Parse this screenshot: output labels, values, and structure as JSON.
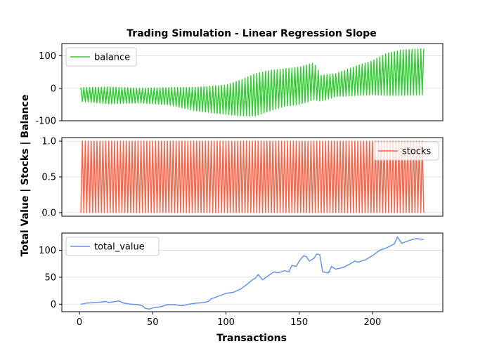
{
  "figure": {
    "title": "Trading Simulation - Linear Regression Slope",
    "ylabel": "Total Value | Stocks | Balance",
    "xlabel": "Transactions"
  },
  "chart_data": [
    {
      "type": "line",
      "name": "balance",
      "series": [
        {
          "name": "balance",
          "color": "#32cd32"
        }
      ],
      "legend": "upper left",
      "ylim": [
        -100,
        138
      ],
      "yticks": [
        -100,
        0,
        100
      ],
      "xlim": [
        -12,
        248
      ],
      "grid": "horizontal",
      "x_range": [
        1,
        235
      ],
      "oscillation": {
        "period_transactions": 2,
        "pattern": "alternating high/low"
      },
      "upper_envelope": [
        [
          1,
          2
        ],
        [
          20,
          4
        ],
        [
          40,
          0
        ],
        [
          60,
          2
        ],
        [
          80,
          3
        ],
        [
          100,
          10
        ],
        [
          110,
          25
        ],
        [
          120,
          45
        ],
        [
          130,
          55
        ],
        [
          140,
          60
        ],
        [
          150,
          65
        ],
        [
          160,
          78
        ],
        [
          165,
          40
        ],
        [
          175,
          45
        ],
        [
          190,
          70
        ],
        [
          200,
          85
        ],
        [
          210,
          108
        ],
        [
          220,
          118
        ],
        [
          235,
          122
        ]
      ],
      "lower_envelope": [
        [
          1,
          -40
        ],
        [
          20,
          -48
        ],
        [
          40,
          -45
        ],
        [
          60,
          -50
        ],
        [
          80,
          -70
        ],
        [
          100,
          -80
        ],
        [
          110,
          -85
        ],
        [
          120,
          -85
        ],
        [
          130,
          -70
        ],
        [
          140,
          -55
        ],
        [
          150,
          -50
        ],
        [
          160,
          -35
        ],
        [
          165,
          -40
        ],
        [
          175,
          -25
        ],
        [
          190,
          -22
        ],
        [
          200,
          -20
        ],
        [
          210,
          -22
        ],
        [
          220,
          -22
        ],
        [
          235,
          -20
        ]
      ]
    },
    {
      "type": "line",
      "name": "stocks",
      "series": [
        {
          "name": "stocks",
          "color": "#ff6347"
        }
      ],
      "legend": "upper right",
      "ylim": [
        -0.05,
        1.05
      ],
      "yticks": [
        0.0,
        0.5,
        1.0
      ],
      "ytick_labels": [
        "0.0",
        "0.5",
        "1.0"
      ],
      "xlim": [
        -12,
        248
      ],
      "grid": "horizontal",
      "x_range": [
        1,
        235
      ],
      "oscillation": {
        "period_transactions": 2,
        "values": [
          0,
          1
        ]
      }
    },
    {
      "type": "line",
      "name": "total_value",
      "series": [
        {
          "name": "total_value",
          "color": "#6495ed",
          "points": [
            [
              1,
              0
            ],
            [
              5,
              2
            ],
            [
              10,
              3
            ],
            [
              15,
              4
            ],
            [
              18,
              5
            ],
            [
              20,
              3
            ],
            [
              25,
              5
            ],
            [
              27,
              6
            ],
            [
              30,
              2
            ],
            [
              35,
              0
            ],
            [
              40,
              -1
            ],
            [
              43,
              -3
            ],
            [
              45,
              -8
            ],
            [
              48,
              -9
            ],
            [
              50,
              -7
            ],
            [
              55,
              -5
            ],
            [
              60,
              -1
            ],
            [
              65,
              -1
            ],
            [
              70,
              -3
            ],
            [
              75,
              0
            ],
            [
              80,
              2
            ],
            [
              85,
              3
            ],
            [
              88,
              5
            ],
            [
              90,
              10
            ],
            [
              95,
              15
            ],
            [
              100,
              20
            ],
            [
              105,
              22
            ],
            [
              110,
              28
            ],
            [
              115,
              38
            ],
            [
              118,
              45
            ],
            [
              120,
              48
            ],
            [
              122,
              55
            ],
            [
              125,
              45
            ],
            [
              130,
              55
            ],
            [
              133,
              60
            ],
            [
              135,
              58
            ],
            [
              140,
              62
            ],
            [
              143,
              60
            ],
            [
              145,
              72
            ],
            [
              148,
              70
            ],
            [
              150,
              80
            ],
            [
              153,
              90
            ],
            [
              155,
              88
            ],
            [
              157,
              80
            ],
            [
              160,
              85
            ],
            [
              162,
              93
            ],
            [
              164,
              92
            ],
            [
              166,
              60
            ],
            [
              170,
              58
            ],
            [
              172,
              70
            ],
            [
              175,
              65
            ],
            [
              180,
              68
            ],
            [
              185,
              75
            ],
            [
              188,
              80
            ],
            [
              190,
              78
            ],
            [
              195,
              82
            ],
            [
              200,
              90
            ],
            [
              205,
              100
            ],
            [
              210,
              105
            ],
            [
              215,
              112
            ],
            [
              217,
              125
            ],
            [
              220,
              113
            ],
            [
              225,
              118
            ],
            [
              230,
              122
            ],
            [
              235,
              120
            ]
          ]
        }
      ],
      "legend": "upper left",
      "ylim": [
        -14,
        132
      ],
      "yticks": [
        0,
        50,
        100
      ],
      "xlim": [
        -12,
        248
      ],
      "xticks": [
        0,
        50,
        100,
        150,
        200
      ],
      "grid": "horizontal"
    }
  ]
}
